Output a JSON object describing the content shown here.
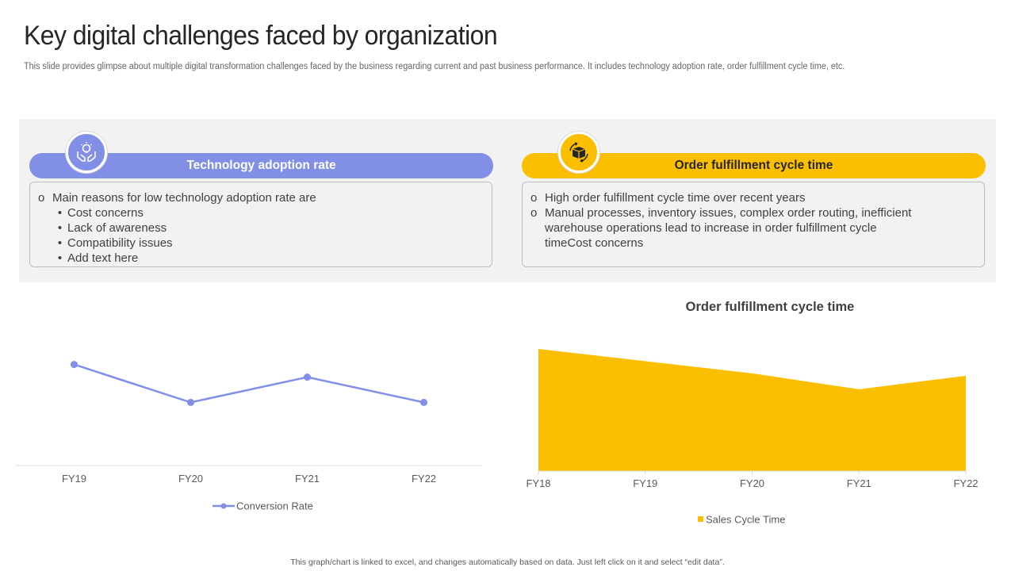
{
  "header": {
    "title": "Key digital challenges faced by organization",
    "subtitle": "This slide provides glimpse about multiple digital transformation challenges faced by the business regarding current and past business performance. It includes technology adoption rate, order fulfillment cycle time, etc."
  },
  "colors": {
    "blue": "#8190e6",
    "yellow": "#fcbf00",
    "panel": "#f2f2f2"
  },
  "cards": {
    "tech": {
      "heading": "Technology adoption rate",
      "icon": "hands-lightbulb-icon",
      "marker": "o",
      "sub_marker": "•",
      "lead": "Main reasons for low technology adoption rate are",
      "items": [
        "Cost concerns",
        "Lack of awareness",
        "Compatibility issues",
        "Add text here"
      ]
    },
    "order": {
      "heading": "Order fulfillment cycle time",
      "icon": "box-cycle-icon",
      "marker": "o",
      "point1": "High order fulfillment  cycle time over recent years",
      "point2_line1": "Manual processes, inventory issues, complex order routing, inefficient",
      "point2_line2": "warehouse operations lead to increase in order fulfillment  cycle",
      "point2_line3": "timeCost concerns"
    }
  },
  "chart_data": [
    {
      "type": "line",
      "title": "",
      "categories": [
        "FY19",
        "FY20",
        "FY21",
        "FY22"
      ],
      "series": [
        {
          "name": "Conversion Rate",
          "values": [
            80,
            50,
            70,
            50
          ]
        }
      ],
      "ylim": [
        0,
        130
      ],
      "grid": false,
      "legend": "bottom"
    },
    {
      "type": "area",
      "title": "Order fulfillment cycle time",
      "categories": [
        "FY18",
        "FY19",
        "FY20",
        "FY21",
        "FY22"
      ],
      "series": [
        {
          "name": "Sales Cycle Time",
          "values": [
            100,
            90,
            80,
            67,
            78
          ]
        }
      ],
      "ylim": [
        0,
        100
      ],
      "grid": false,
      "legend": "bottom"
    }
  ],
  "footnote": "This graph/chart is linked to excel, and changes automatically based on data. Just left click on it and select “edit data”."
}
